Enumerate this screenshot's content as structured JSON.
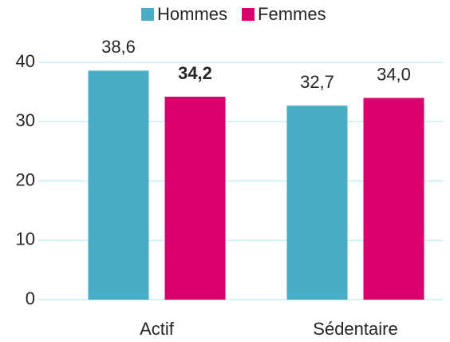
{
  "chart_data": {
    "type": "bar",
    "categories": [
      "Actif",
      "Sédentaire"
    ],
    "series": [
      {
        "name": "Hommes",
        "color": "#4bacc6",
        "values": [
          38.6,
          32.7
        ],
        "value_labels": [
          "38,6",
          "32,7"
        ]
      },
      {
        "name": "Femmes",
        "color": "#d9006c",
        "values": [
          34.2,
          34.0
        ],
        "value_labels": [
          "34,2",
          "34,0"
        ]
      }
    ],
    "ylim": [
      0,
      40
    ],
    "yticks": [
      0,
      10,
      20,
      30,
      40
    ],
    "grid": true,
    "legend": "top"
  }
}
